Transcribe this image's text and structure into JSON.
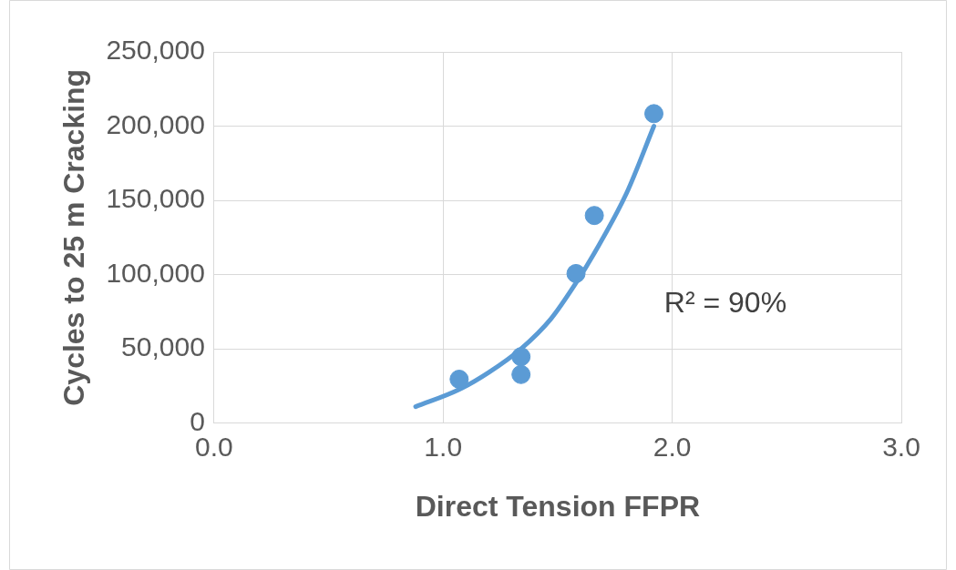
{
  "chart_data": {
    "type": "scatter",
    "xlabel": "Direct Tension FFPR",
    "ylabel": "Cycles to 25 m Cracking",
    "series": [
      {
        "marker": "circle",
        "color": "#5b9bd5",
        "x": [
          1.07,
          1.34,
          1.34,
          1.58,
          1.66,
          1.92
        ],
        "values": [
          29500,
          44700,
          32700,
          100700,
          139800,
          208400
        ]
      },
      {
        "type": "line",
        "marker": "none",
        "color": "#5b9bd5",
        "x": [
          0.88,
          1.07,
          1.2,
          1.34,
          1.47,
          1.58,
          1.66,
          1.8,
          1.92
        ],
        "values": [
          11000,
          22600,
          34200,
          50000,
          70100,
          94400,
          114500,
          154600,
          200000
        ]
      }
    ],
    "xlim": [
      0,
      3
    ],
    "xticks": [
      {
        "value": 0,
        "label": "0.0"
      },
      {
        "value": 1,
        "label": "1.0"
      },
      {
        "value": 2,
        "label": "2.0"
      },
      {
        "value": 3,
        "label": "3.0"
      }
    ],
    "ylim": [
      0,
      250000
    ],
    "yticks": [
      {
        "value": 0,
        "label": "0"
      },
      {
        "value": 50000,
        "label": "50,000"
      },
      {
        "value": 100000,
        "label": "100,000"
      },
      {
        "value": 150000,
        "label": "150,000"
      },
      {
        "value": 200000,
        "label": "200,000"
      },
      {
        "value": 250000,
        "label": "250,000"
      }
    ],
    "annotations": [
      "R² = 90%"
    ],
    "grid": true,
    "legend": false
  }
}
